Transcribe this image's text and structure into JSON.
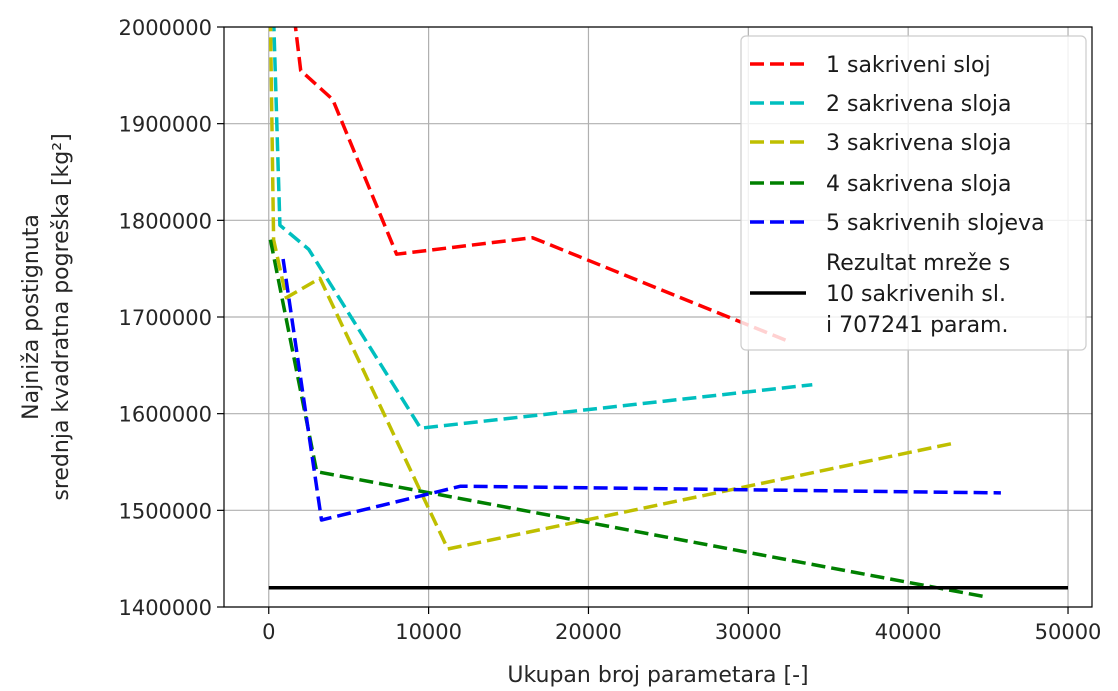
{
  "chart_data": {
    "type": "line",
    "title": "",
    "xlabel": "Ukupan broj parametara [-]",
    "ylabel_lines": [
      "Najniža postignuta",
      "srednja kvadratna pogreška [kg²]"
    ],
    "xlim": [
      -2800,
      51500
    ],
    "ylim": [
      1400000,
      2000000
    ],
    "xticks": [
      0,
      10000,
      20000,
      30000,
      40000,
      50000
    ],
    "xtick_labels": [
      "0",
      "10000",
      "20000",
      "30000",
      "40000",
      "50000"
    ],
    "yticks": [
      1400000,
      1500000,
      1600000,
      1700000,
      1800000,
      1900000,
      2000000
    ],
    "ytick_labels": [
      "1400000",
      "1500000",
      "1600000",
      "1700000",
      "1800000",
      "1900000",
      "2000000"
    ],
    "grid": true,
    "legend_position": "top-right",
    "series": [
      {
        "name": "1 sakriveni sloj",
        "color": "#ff0000",
        "style": "dashed",
        "points": [
          [
            1600,
            2010000
          ],
          [
            2000,
            1955000
          ],
          [
            4000,
            1925000
          ],
          [
            8000,
            1765000
          ],
          [
            16500,
            1782000
          ],
          [
            32500,
            1675000
          ]
        ]
      },
      {
        "name": "2 sakrivena sloja",
        "color": "#00bfbf",
        "style": "dashed",
        "points": [
          [
            300,
            2010000
          ],
          [
            700,
            1795000
          ],
          [
            2500,
            1770000
          ],
          [
            9500,
            1585000
          ],
          [
            34000,
            1630000
          ]
        ]
      },
      {
        "name": "3 sakrivena sloja",
        "color": "#bfbf00",
        "style": "dashed",
        "points": [
          [
            100,
            2010000
          ],
          [
            300,
            1780000
          ],
          [
            1100,
            1720000
          ],
          [
            3200,
            1740000
          ],
          [
            11200,
            1460000
          ],
          [
            43000,
            1570000
          ]
        ]
      },
      {
        "name": "4 sakrivena sloja",
        "color": "#008000",
        "style": "dashed",
        "points": [
          [
            100,
            1780000
          ],
          [
            3000,
            1540000
          ],
          [
            45000,
            1410000
          ]
        ]
      },
      {
        "name": "5 sakrivenih slojeva",
        "color": "#0000ff",
        "style": "dashed",
        "points": [
          [
            900,
            1760000
          ],
          [
            3300,
            1490000
          ],
          [
            12000,
            1525000
          ],
          [
            45800,
            1518000
          ]
        ]
      },
      {
        "name_lines": [
          "Rezultat mreže s",
          "10 sakrivenih sl.",
          "i 707241 param."
        ],
        "color": "#000000",
        "style": "solid",
        "points": [
          [
            0,
            1420000
          ],
          [
            50000,
            1420000
          ]
        ]
      }
    ]
  }
}
